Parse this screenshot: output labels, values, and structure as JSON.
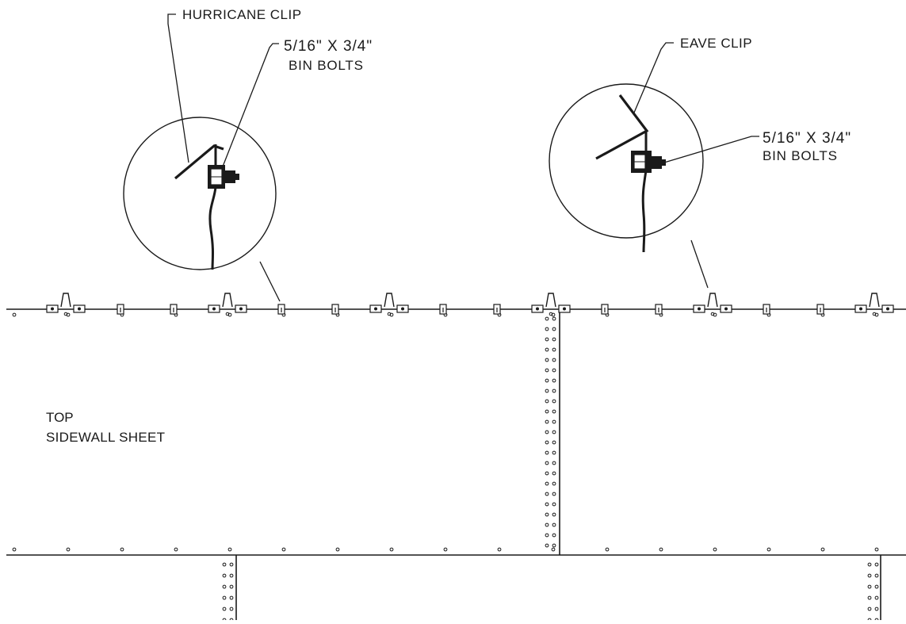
{
  "labels": {
    "hurricane_clip": "HURRICANE CLIP",
    "left_bolt_size": "5/16\" X 3/4\"",
    "left_bolt_name": "BIN BOLTS",
    "eave_clip": "EAVE CLIP",
    "right_bolt_size": "5/16\" X 3/4\"",
    "right_bolt_name": "BIN BOLTS",
    "sheet_line1": "TOP",
    "sheet_line2": "SIDEWALL SHEET"
  },
  "colors": {
    "ink": "#1a1a1a",
    "background": "#ffffff"
  }
}
